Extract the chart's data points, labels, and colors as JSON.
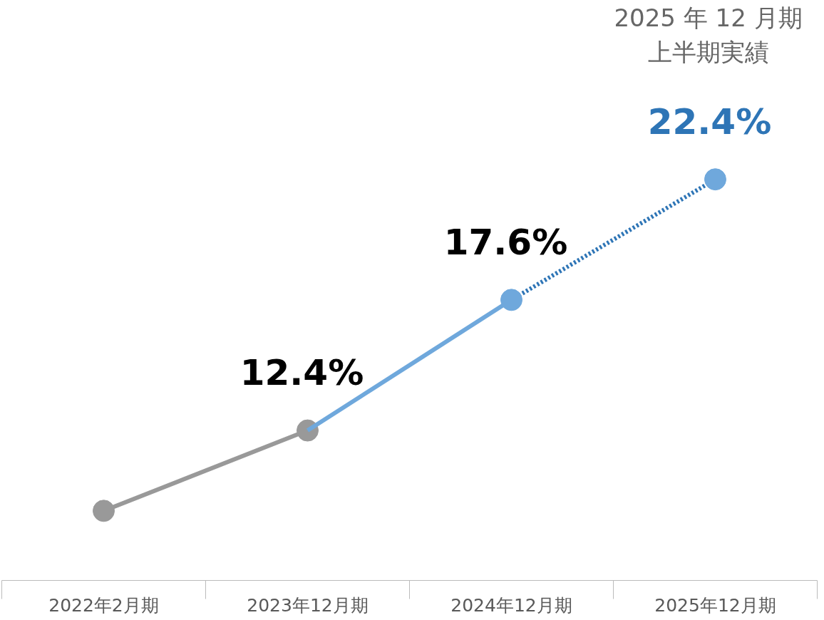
{
  "chart_data": {
    "type": "line",
    "categories": [
      "2022年2月期",
      "2023年12月期",
      "2024年12月期",
      "2025年12月期"
    ],
    "marker": "circle",
    "grid": false,
    "series": [
      {
        "color": "#999999",
        "values": [
          9.2,
          12.4,
          null,
          null
        ],
        "value_labels": [
          null,
          "12.4%",
          null,
          null
        ]
      },
      {
        "color": "#6fa8dc",
        "values": [
          null,
          12.4,
          17.6,
          null
        ],
        "marker": "none",
        "value_labels": [
          null,
          null,
          "17.6%",
          null
        ]
      },
      {
        "color": "#2e75b6",
        "colors": [
          null,
          null,
          "#6fa8dc",
          "#6fa8dc"
        ],
        "line_style": "dotted",
        "values": [
          null,
          null,
          17.6,
          22.4
        ],
        "value_labels": [
          null,
          null,
          null,
          "22.4%"
        ]
      }
    ],
    "annotations": [
      "2025 年 12 月期",
      "上半期実績"
    ]
  }
}
